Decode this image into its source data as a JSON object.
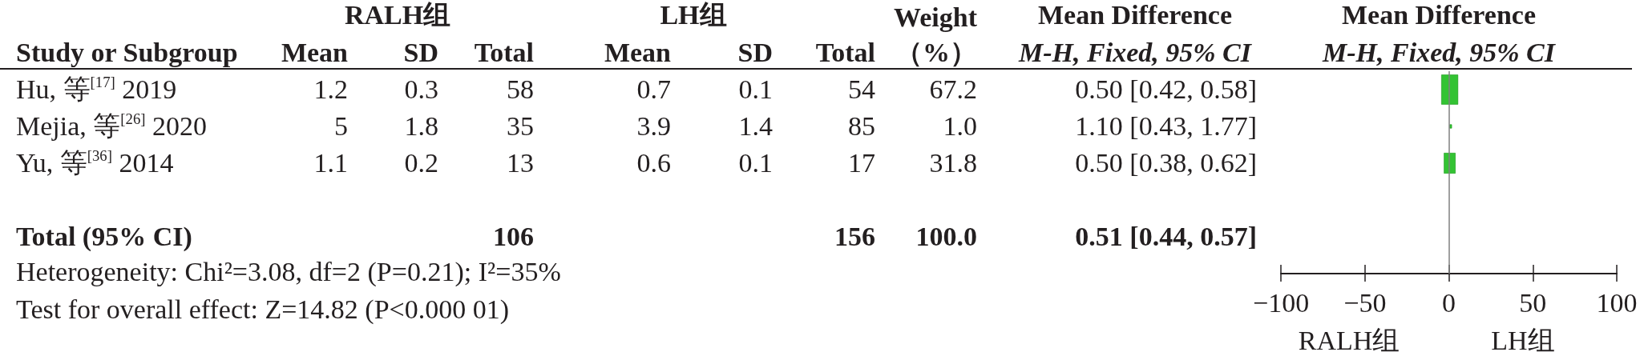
{
  "chart_data": [
    {
      "type": "other",
      "data_labels": true,
      "categories": [
        "Hu, 等$^{[17]}$ 2019",
        "Mejia, 等$^{[26]}$ 2020",
        "Yu, 等$^{[36]}$ 2014",
        null,
        "Total (95% CI)"
      ],
      "series": [
        {
          "name": "Mean",
          "values": [
            1.2,
            5,
            1.1,
            null,
            null
          ]
        },
        {
          "name": "SD",
          "values": [
            0.3,
            1.8,
            0.2,
            null,
            null
          ]
        },
        {
          "name": "Total",
          "values": [
            58,
            35,
            13,
            null,
            106
          ]
        },
        {
          "name": "Mean",
          "values": [
            0.7,
            3.9,
            0.6,
            null,
            null
          ]
        },
        {
          "name": "SD",
          "values": [
            0.1,
            1.4,
            0.1,
            null,
            null
          ]
        },
        {
          "name": "Total",
          "values": [
            54,
            85,
            17,
            null,
            156
          ]
        },
        {
          "name": "Weight（%）",
          "values": [
            67.2,
            1.0,
            31.8,
            null,
            100.0
          ],
          "value_labels": [
            "67.2",
            "1.0",
            "31.8",
            null,
            "100.0"
          ]
        }
      ],
      "annotations": [
        "Study or Subgroup",
        "RALH组",
        "LH组",
        "Heterogeneity: Chi²=3.08, df=2 (P=0.21); I²=35%",
        "Test for overall effect: Z=14.82 (P<0.000 01)"
      ]
    },
    {
      "type": "bubble",
      "orientation": "horizontal",
      "marker": "square",
      "tick_labels": "x",
      "title": "Mean Difference",
      "subtitle": "M-H, Fixed, 95% CI",
      "categories": [
        null,
        null,
        null,
        null,
        null
      ],
      "series": [
        {
          "color": "#00b400",
          "values": [
            0.5,
            1.1,
            0.5,
            null,
            null
          ],
          "sizes": [
            1,
            0.015,
            0.47,
            null,
            null
          ],
          "value_labels": [
            "0.50 [0.42, 0.58]",
            "1.10 [0.43, 1.77]",
            "0.50 [0.38, 0.62]",
            null,
            "0.51 [0.44, 0.57]"
          ]
        }
      ],
      "xlim": [
        -100,
        100
      ],
      "xticks": [
        {
          "value": -100,
          "label": "−100"
        },
        {
          "value": -50,
          "label": "−50"
        },
        0,
        50,
        100
      ],
      "ref_lines": [
        {
          "axis": "x",
          "value": 0,
          "color": "#808080"
        }
      ],
      "annotations": [
        "RALH组",
        "LH组"
      ]
    }
  ]
}
